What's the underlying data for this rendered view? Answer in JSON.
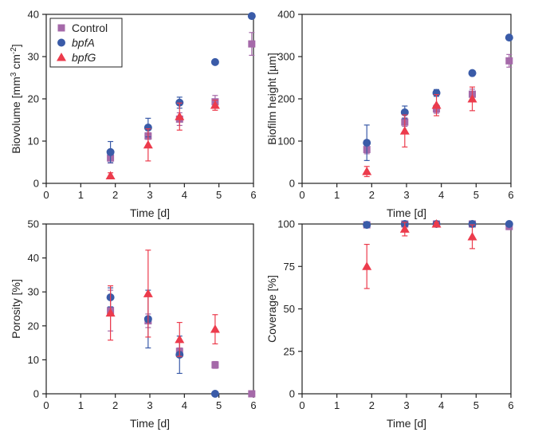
{
  "legend": [
    {
      "name": "Control",
      "italic": false
    },
    {
      "name": "bpfA",
      "italic": true
    },
    {
      "name": "bpfG",
      "italic": true
    }
  ],
  "series_styles": {
    "Control": {
      "color": "#a569a9",
      "marker": "square"
    },
    "bpfA": {
      "color": "#3a5ba8",
      "marker": "circle"
    },
    "bpfG": {
      "color": "#ec3b4c",
      "marker": "triangle"
    }
  },
  "chart_data": [
    {
      "type": "scatter",
      "id": "biovolume",
      "xlabel": "Time [d]",
      "ylabel_parts": [
        "Biovolume [mm",
        "3",
        " cm",
        "-2",
        "]"
      ],
      "xlim": [
        0,
        6
      ],
      "ylim": [
        0,
        40
      ],
      "xticks": [
        0,
        1,
        2,
        3,
        4,
        5,
        6
      ],
      "yticks": [
        0,
        10,
        20,
        30,
        40
      ],
      "grid": false,
      "legend": "top-left",
      "series": [
        {
          "name": "Control",
          "x": [
            1.86,
            2.95,
            3.86,
            4.89,
            5.95
          ],
          "y": [
            6.0,
            11.2,
            15.2,
            19.3,
            33.0
          ],
          "err": [
            1.2,
            0.8,
            1.5,
            1.5,
            2.7
          ]
        },
        {
          "name": "bpfA",
          "x": [
            1.86,
            2.95,
            3.86,
            4.89,
            5.95
          ],
          "y": [
            7.4,
            13.2,
            19.1,
            28.7,
            39.6
          ],
          "err": [
            2.5,
            2.2,
            1.3,
            0,
            0
          ]
        },
        {
          "name": "bpfG",
          "x": [
            1.86,
            2.95,
            3.86,
            4.89,
            5.95
          ],
          "y": [
            1.8,
            9.1,
            15.8,
            18.5,
            null
          ],
          "err": [
            0.7,
            3.8,
            3.2,
            1.2,
            null
          ]
        }
      ]
    },
    {
      "type": "scatter",
      "id": "biofilm-height",
      "xlabel": "Time [d]",
      "ylabel_parts": [
        "Biofilm height [µm]"
      ],
      "xlim": [
        0,
        6
      ],
      "ylim": [
        0,
        400
      ],
      "xticks": [
        0,
        1,
        2,
        3,
        4,
        5,
        6
      ],
      "yticks": [
        0,
        100,
        200,
        300,
        400
      ],
      "grid": false,
      "series": [
        {
          "name": "Control",
          "x": [
            1.86,
            2.95,
            3.86,
            4.89,
            5.95
          ],
          "y": [
            80,
            145,
            176,
            211,
            290
          ],
          "err": [
            10,
            10,
            10,
            12,
            15
          ]
        },
        {
          "name": "bpfA",
          "x": [
            1.86,
            2.95,
            3.86,
            4.89,
            5.95
          ],
          "y": [
            96,
            168,
            214,
            261,
            345
          ],
          "err": [
            42,
            15,
            8,
            0,
            0
          ]
        },
        {
          "name": "bpfG",
          "x": [
            1.86,
            2.95,
            3.86,
            4.89,
            5.95
          ],
          "y": [
            28,
            124,
            185,
            200,
            null
          ],
          "err": [
            12,
            38,
            25,
            28,
            null
          ]
        }
      ]
    },
    {
      "type": "scatter",
      "id": "porosity",
      "xlabel": "Time [d]",
      "ylabel_parts": [
        "Porosity [%]"
      ],
      "xlim": [
        0,
        6
      ],
      "ylim": [
        0,
        50
      ],
      "xticks": [
        0,
        1,
        2,
        3,
        4,
        5,
        6
      ],
      "yticks": [
        0,
        10,
        20,
        30,
        40,
        50
      ],
      "grid": false,
      "series": [
        {
          "name": "Control",
          "x": [
            1.86,
            2.95,
            3.86,
            4.89,
            5.95
          ],
          "y": [
            24.5,
            21.5,
            12.5,
            8.5,
            0
          ],
          "err": [
            6,
            2,
            1,
            1,
            0
          ]
        },
        {
          "name": "bpfA",
          "x": [
            1.86,
            2.95,
            3.86,
            4.89,
            5.95
          ],
          "y": [
            28.4,
            22.0,
            11.5,
            0,
            null
          ],
          "err": [
            2.8,
            8.5,
            5.5,
            0,
            null
          ]
        },
        {
          "name": "bpfG",
          "x": [
            1.86,
            2.95,
            3.86,
            4.89,
            5.95
          ],
          "y": [
            23.8,
            29.5,
            16.0,
            19.0,
            null
          ],
          "err": [
            8,
            12.8,
            5,
            4.3,
            null
          ]
        }
      ]
    },
    {
      "type": "scatter",
      "id": "coverage",
      "xlabel": "Time [d]",
      "ylabel_parts": [
        "Coverage [%]"
      ],
      "xlim": [
        0,
        6
      ],
      "ylim": [
        0,
        100
      ],
      "xticks": [
        0,
        1,
        2,
        3,
        4,
        5,
        6
      ],
      "yticks": [
        0,
        25,
        50,
        75,
        100
      ],
      "grid": false,
      "series": [
        {
          "name": "Control",
          "x": [
            1.86,
            2.95,
            3.86,
            4.89,
            5.95
          ],
          "y": [
            99.5,
            100,
            100,
            100,
            98.5
          ],
          "err": [
            0.5,
            0.3,
            0.3,
            0.3,
            0.5
          ]
        },
        {
          "name": "bpfA",
          "x": [
            1.86,
            2.95,
            3.86,
            4.89,
            5.95
          ],
          "y": [
            99.5,
            100,
            100,
            100,
            100
          ],
          "err": [
            0.5,
            0.3,
            0.3,
            0.3,
            0.3
          ]
        },
        {
          "name": "bpfG",
          "x": [
            1.86,
            2.95,
            3.86,
            4.89,
            5.95
          ],
          "y": [
            75,
            97,
            100,
            92.5,
            null
          ],
          "err": [
            13,
            4,
            1,
            7,
            null
          ]
        }
      ]
    }
  ]
}
